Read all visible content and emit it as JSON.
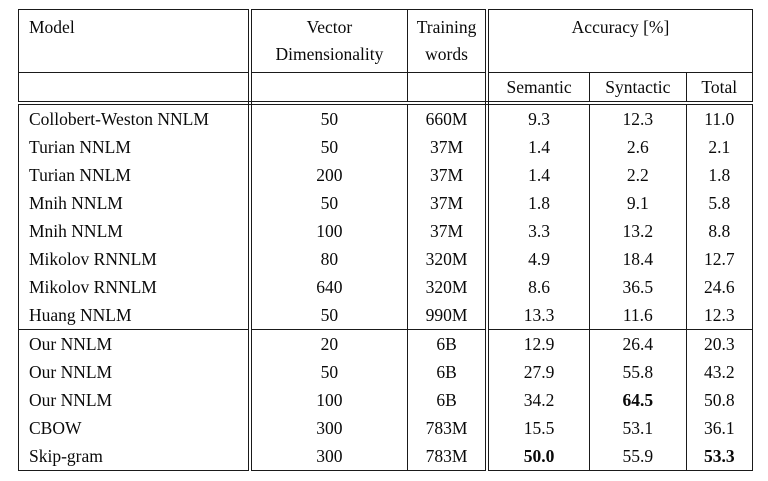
{
  "page": {
    "background": "#ffffff",
    "rule_color": "#1a1a1a",
    "text_color": "#0a0a0a"
  },
  "table": {
    "header": {
      "model": "Model",
      "vector_line1": "Vector",
      "vector_line2": "Dimensionality",
      "training_line1": "Training",
      "training_line2": "words",
      "accuracy": "Accuracy [%]",
      "semantic": "Semantic",
      "syntactic": "Syntactic",
      "total": "Total"
    },
    "baseline_models": [
      {
        "model": "Collobert-Weston NNLM",
        "dim": "50",
        "words": "660M",
        "semantic": "9.3",
        "syntactic": "12.3",
        "total": "11.0",
        "bold": []
      },
      {
        "model": "Turian NNLM",
        "dim": "50",
        "words": "37M",
        "semantic": "1.4",
        "syntactic": "2.6",
        "total": "2.1",
        "bold": []
      },
      {
        "model": "Turian NNLM",
        "dim": "200",
        "words": "37M",
        "semantic": "1.4",
        "syntactic": "2.2",
        "total": "1.8",
        "bold": []
      },
      {
        "model": "Mnih NNLM",
        "dim": "50",
        "words": "37M",
        "semantic": "1.8",
        "syntactic": "9.1",
        "total": "5.8",
        "bold": []
      },
      {
        "model": "Mnih NNLM",
        "dim": "100",
        "words": "37M",
        "semantic": "3.3",
        "syntactic": "13.2",
        "total": "8.8",
        "bold": []
      },
      {
        "model": "Mikolov RNNLM",
        "dim": "80",
        "words": "320M",
        "semantic": "4.9",
        "syntactic": "18.4",
        "total": "12.7",
        "bold": []
      },
      {
        "model": "Mikolov RNNLM",
        "dim": "640",
        "words": "320M",
        "semantic": "8.6",
        "syntactic": "36.5",
        "total": "24.6",
        "bold": []
      },
      {
        "model": "Huang NNLM",
        "dim": "50",
        "words": "990M",
        "semantic": "13.3",
        "syntactic": "11.6",
        "total": "12.3",
        "bold": []
      }
    ],
    "our_models": [
      {
        "model": "Our NNLM",
        "dim": "20",
        "words": "6B",
        "semantic": "12.9",
        "syntactic": "26.4",
        "total": "20.3",
        "bold": []
      },
      {
        "model": "Our NNLM",
        "dim": "50",
        "words": "6B",
        "semantic": "27.9",
        "syntactic": "55.8",
        "total": "43.2",
        "bold": []
      },
      {
        "model": "Our NNLM",
        "dim": "100",
        "words": "6B",
        "semantic": "34.2",
        "syntactic": "64.5",
        "total": "50.8",
        "bold": [
          "syntactic"
        ]
      },
      {
        "model": "CBOW",
        "dim": "300",
        "words": "783M",
        "semantic": "15.5",
        "syntactic": "53.1",
        "total": "36.1",
        "bold": []
      },
      {
        "model": "Skip-gram",
        "dim": "300",
        "words": "783M",
        "semantic": "50.0",
        "syntactic": "55.9",
        "total": "53.3",
        "bold": [
          "semantic",
          "total"
        ]
      }
    ]
  }
}
